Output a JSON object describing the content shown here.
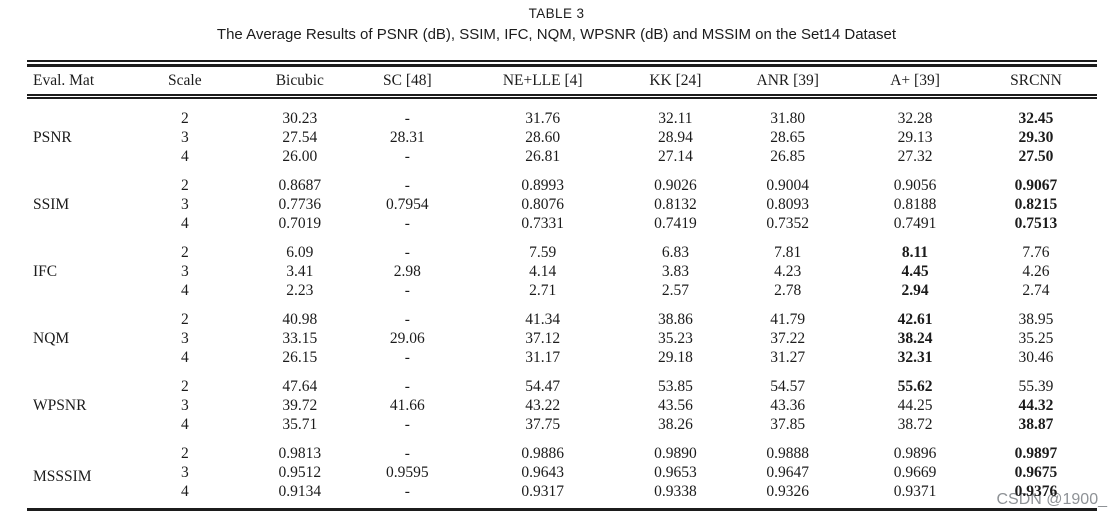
{
  "page": {
    "title": "TABLE 3",
    "caption": "The Average Results of PSNR (dB), SSIM, IFC, NQM, WPSNR (dB) and MSSIM on the Set14 Dataset",
    "watermark": "CSDN @1900_"
  },
  "table": {
    "columns": [
      "Eval. Mat",
      "Scale",
      "Bicubic",
      "SC [48]",
      "NE+LLE [4]",
      "KK [24]",
      "ANR [39]",
      "A+ [39]",
      "SRCNN"
    ],
    "groups": [
      {
        "metric": "PSNR",
        "rows": [
          {
            "scale": "2",
            "values": [
              "30.23",
              "-",
              "31.76",
              "32.11",
              "31.80",
              "32.28",
              "32.45"
            ],
            "bold": 6
          },
          {
            "scale": "3",
            "values": [
              "27.54",
              "28.31",
              "28.60",
              "28.94",
              "28.65",
              "29.13",
              "29.30"
            ],
            "bold": 6
          },
          {
            "scale": "4",
            "values": [
              "26.00",
              "-",
              "26.81",
              "27.14",
              "26.85",
              "27.32",
              "27.50"
            ],
            "bold": 6
          }
        ]
      },
      {
        "metric": "SSIM",
        "rows": [
          {
            "scale": "2",
            "values": [
              "0.8687",
              "-",
              "0.8993",
              "0.9026",
              "0.9004",
              "0.9056",
              "0.9067"
            ],
            "bold": 6
          },
          {
            "scale": "3",
            "values": [
              "0.7736",
              "0.7954",
              "0.8076",
              "0.8132",
              "0.8093",
              "0.8188",
              "0.8215"
            ],
            "bold": 6
          },
          {
            "scale": "4",
            "values": [
              "0.7019",
              "-",
              "0.7331",
              "0.7419",
              "0.7352",
              "0.7491",
              "0.7513"
            ],
            "bold": 6
          }
        ]
      },
      {
        "metric": "IFC",
        "rows": [
          {
            "scale": "2",
            "values": [
              "6.09",
              "-",
              "7.59",
              "6.83",
              "7.81",
              "8.11",
              "7.76"
            ],
            "bold": 5
          },
          {
            "scale": "3",
            "values": [
              "3.41",
              "2.98",
              "4.14",
              "3.83",
              "4.23",
              "4.45",
              "4.26"
            ],
            "bold": 5
          },
          {
            "scale": "4",
            "values": [
              "2.23",
              "-",
              "2.71",
              "2.57",
              "2.78",
              "2.94",
              "2.74"
            ],
            "bold": 5
          }
        ]
      },
      {
        "metric": "NQM",
        "rows": [
          {
            "scale": "2",
            "values": [
              "40.98",
              "-",
              "41.34",
              "38.86",
              "41.79",
              "42.61",
              "38.95"
            ],
            "bold": 5
          },
          {
            "scale": "3",
            "values": [
              "33.15",
              "29.06",
              "37.12",
              "35.23",
              "37.22",
              "38.24",
              "35.25"
            ],
            "bold": 5
          },
          {
            "scale": "4",
            "values": [
              "26.15",
              "-",
              "31.17",
              "29.18",
              "31.27",
              "32.31",
              "30.46"
            ],
            "bold": 5
          }
        ]
      },
      {
        "metric": "WPSNR",
        "rows": [
          {
            "scale": "2",
            "values": [
              "47.64",
              "-",
              "54.47",
              "53.85",
              "54.57",
              "55.62",
              "55.39"
            ],
            "bold": 5
          },
          {
            "scale": "3",
            "values": [
              "39.72",
              "41.66",
              "43.22",
              "43.56",
              "43.36",
              "44.25",
              "44.32"
            ],
            "bold": 6
          },
          {
            "scale": "4",
            "values": [
              "35.71",
              "-",
              "37.75",
              "38.26",
              "37.85",
              "38.72",
              "38.87"
            ],
            "bold": 6
          }
        ]
      },
      {
        "metric": "MSSSIM",
        "rows": [
          {
            "scale": "2",
            "values": [
              "0.9813",
              "-",
              "0.9886",
              "0.9890",
              "0.9888",
              "0.9896",
              "0.9897"
            ],
            "bold": 6
          },
          {
            "scale": "3",
            "values": [
              "0.9512",
              "0.9595",
              "0.9643",
              "0.9653",
              "0.9647",
              "0.9669",
              "0.9675"
            ],
            "bold": 6
          },
          {
            "scale": "4",
            "values": [
              "0.9134",
              "-",
              "0.9317",
              "0.9338",
              "0.9326",
              "0.9371",
              "0.9376"
            ],
            "bold": 6
          }
        ]
      }
    ]
  }
}
